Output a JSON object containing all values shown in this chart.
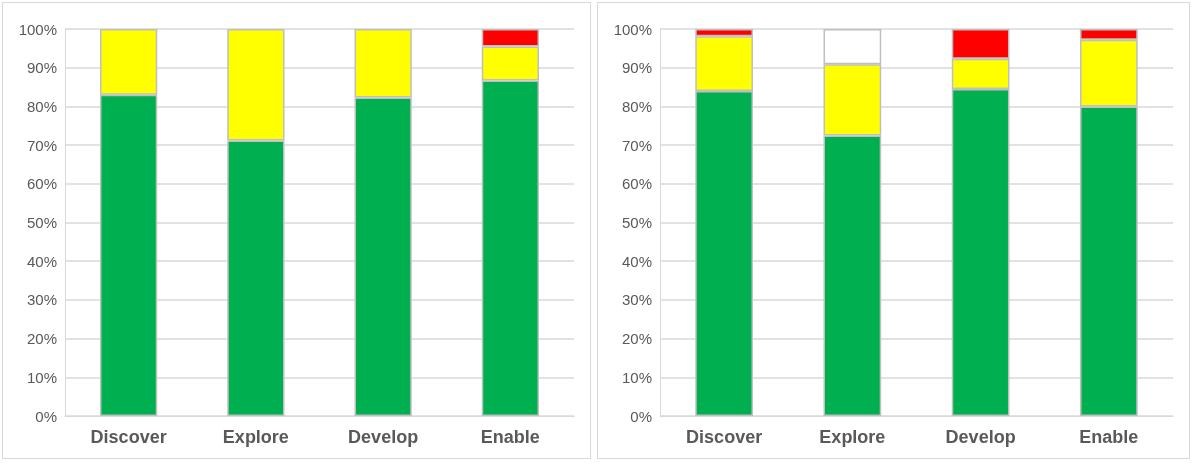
{
  "chart_data": [
    {
      "type": "bar",
      "stacked": true,
      "categories": [
        "Discover",
        "Explore",
        "Develop",
        "Enable"
      ],
      "series": [
        {
          "color": "#00b050",
          "values": [
            83.0,
            71.2,
            82.3,
            86.7
          ]
        },
        {
          "color": "#ffff00",
          "values": [
            17.0,
            28.8,
            17.7,
            8.8
          ]
        },
        {
          "color": "#ff0000",
          "values": [
            null,
            null,
            null,
            4.5
          ]
        }
      ],
      "ylim": [
        0,
        100
      ],
      "yticks": [
        {
          "value": 0,
          "label": "0%"
        },
        {
          "value": 10,
          "label": "10%"
        },
        {
          "value": 20,
          "label": "20%"
        },
        {
          "value": 30,
          "label": "30%"
        },
        {
          "value": 40,
          "label": "40%"
        },
        {
          "value": 50,
          "label": "50%"
        },
        {
          "value": 60,
          "label": "60%"
        },
        {
          "value": 70,
          "label": "70%"
        },
        {
          "value": 80,
          "label": "80%"
        },
        {
          "value": 90,
          "label": "90%"
        },
        {
          "value": 100,
          "label": "100%"
        }
      ],
      "grid": "y"
    },
    {
      "type": "bar",
      "stacked": true,
      "categories": [
        "Discover",
        "Explore",
        "Develop",
        "Enable"
      ],
      "series": [
        {
          "color": "#00b050",
          "values": [
            84.0,
            72.5,
            84.5,
            80.0
          ]
        },
        {
          "color": "#ffff00",
          "values": [
            14.1,
            18.4,
            7.8,
            17.2
          ]
        },
        {
          "color": "#ffffff",
          "values": [
            null,
            9.1,
            null,
            null
          ]
        },
        {
          "color": "#ff0000",
          "values": [
            1.9,
            null,
            7.7,
            2.8
          ]
        }
      ],
      "ylim": [
        0,
        100
      ],
      "yticks": [
        {
          "value": 0,
          "label": "0%"
        },
        {
          "value": 10,
          "label": "10%"
        },
        {
          "value": 20,
          "label": "20%"
        },
        {
          "value": 30,
          "label": "30%"
        },
        {
          "value": 40,
          "label": "40%"
        },
        {
          "value": 50,
          "label": "50%"
        },
        {
          "value": 60,
          "label": "60%"
        },
        {
          "value": 70,
          "label": "70%"
        },
        {
          "value": 80,
          "label": "80%"
        },
        {
          "value": 90,
          "label": "90%"
        },
        {
          "value": 100,
          "label": "100%"
        }
      ],
      "grid": "y"
    }
  ]
}
